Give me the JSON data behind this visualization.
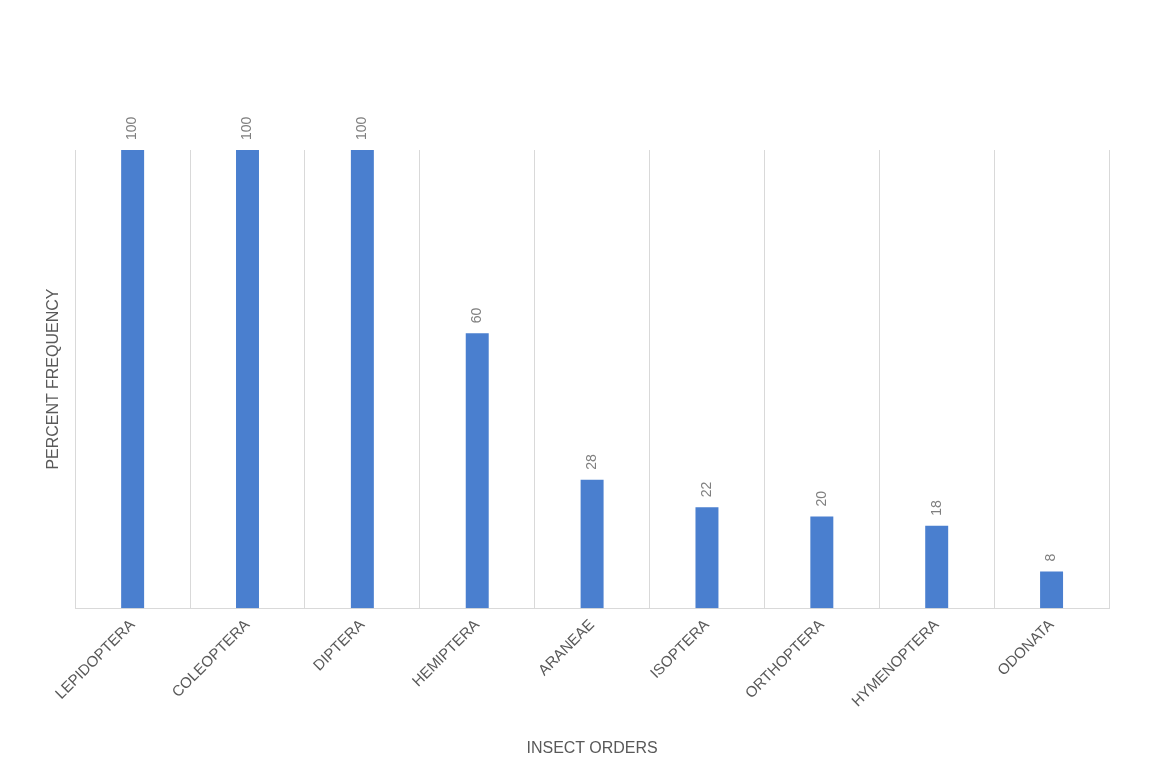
{
  "chart_data": {
    "type": "bar",
    "xlabel": "INSECT ORDERS",
    "ylabel": "PERCENT FREQUENCY",
    "categories": [
      "LEPIDOPTERA",
      "COLEOPTERA",
      "DIPTERA",
      "HEMIPTERA",
      "ARANEAE",
      "ISOPTERA",
      "ORTHOPTERA",
      "HYMENOPTERA",
      "ODONATA"
    ],
    "values": [
      100,
      100,
      100,
      60,
      28,
      22,
      20,
      18,
      8
    ],
    "color": "#4a7fcf",
    "data_labels": true,
    "grid": "x",
    "legend": false
  }
}
